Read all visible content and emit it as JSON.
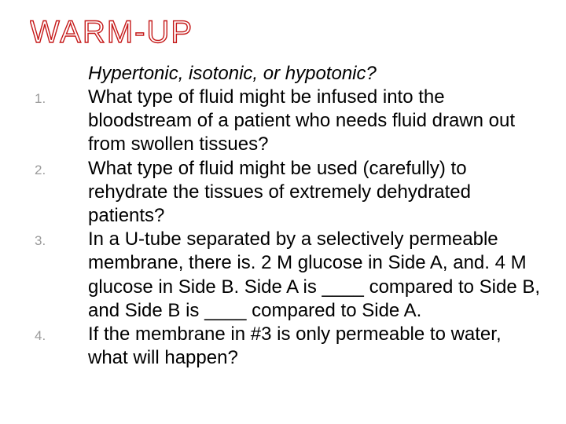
{
  "title": {
    "text": "WARM-UP",
    "fill_color": "#ffffff",
    "stroke_color": "#c51919"
  },
  "subtitle": "Hypertonic, isotonic, or hypotonic?",
  "items": [
    "What type of fluid might be infused into the bloodstream of a patient who needs fluid drawn out from swollen tissues?",
    "What type of fluid might be used (carefully) to rehydrate the tissues of extremely dehydrated patients?",
    "In a U-tube separated by a selectively permeable membrane, there is. 2 M glucose in Side A, and. 4 M glucose in Side B. Side A is ____ compared to Side B, and Side B is ____ compared to Side A.",
    "If the membrane in #3 is only permeable to water, what will happen?"
  ],
  "styles": {
    "background_color": "#ffffff",
    "body_text_color": "#000000",
    "number_color": "#9a9a9a",
    "body_fontsize": 24,
    "number_fontsize": 17,
    "title_fontsize": 40
  }
}
